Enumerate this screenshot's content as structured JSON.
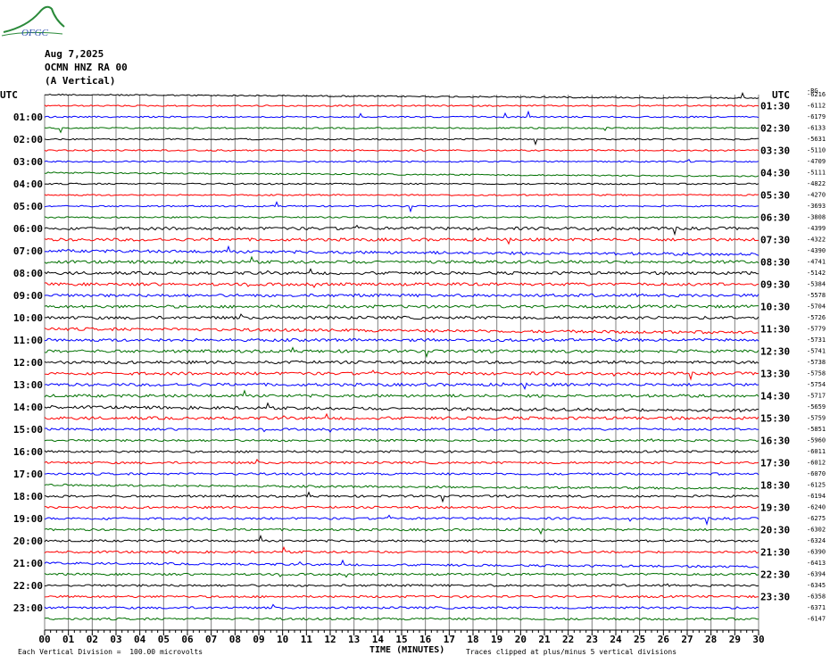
{
  "header": {
    "logo_text": "OFGC",
    "date": "Aug 7,2025",
    "station": "OCMN HNZ RA 00",
    "component": "(A Vertical)"
  },
  "axis": {
    "left_title": "UTC",
    "right_title": "UTC",
    "right_top_label": "-RG",
    "xlabel": "TIME (MINUTES)",
    "x_ticks": [
      "00",
      "01",
      "02",
      "03",
      "04",
      "05",
      "06",
      "07",
      "08",
      "09",
      "10",
      "11",
      "12",
      "13",
      "14",
      "15",
      "16",
      "17",
      "18",
      "19",
      "20",
      "21",
      "22",
      "23",
      "24",
      "25",
      "26",
      "27",
      "28",
      "29",
      "30"
    ]
  },
  "footer": {
    "scale_note": "Each Vertical Division =  100.00 microvolts",
    "clip_note": "Traces clipped at plus/minus 5 vertical divisions"
  },
  "colors": {
    "cycle": [
      "#000000",
      "#ff0000",
      "#0000ff",
      "#007000"
    ],
    "grid": "#808080"
  },
  "chart_data": {
    "type": "line",
    "title": "",
    "xlabel": "TIME (MINUTES)",
    "ylabel": "UTC",
    "xlim": [
      0,
      30
    ],
    "grid": true,
    "left_labels": [
      "01:00",
      "02:00",
      "03:00",
      "04:00",
      "05:00",
      "06:00",
      "07:00",
      "08:00",
      "09:00",
      "10:00",
      "11:00",
      "12:00",
      "13:00",
      "14:00",
      "15:00",
      "16:00",
      "17:00",
      "18:00",
      "19:00",
      "20:00",
      "21:00",
      "22:00",
      "23:00"
    ],
    "right_labels": [
      "01:30",
      "02:30",
      "03:30",
      "04:30",
      "05:30",
      "06:30",
      "07:30",
      "08:30",
      "09:30",
      "10:30",
      "11:30",
      "12:30",
      "13:30",
      "14:30",
      "15:30",
      "16:30",
      "17:30",
      "18:30",
      "19:30",
      "20:30",
      "21:30",
      "22:30",
      "23:30"
    ],
    "offsets": [
      "-6216",
      "-6112",
      "-6179",
      "-6133",
      "-5631",
      "-5110",
      "-4709",
      "-5111",
      "-4822",
      "-4270",
      "-3693",
      "-3808",
      "-4399",
      "-4322",
      "-4390",
      "-4741",
      "-5142",
      "-5384",
      "-5578",
      "-5704",
      "-5726",
      "-5779",
      "-5731",
      "-5741",
      "-5738",
      "-5758",
      "-5754",
      "-5717",
      "-5659",
      "-5759",
      "-5851",
      "-5960",
      "-6011",
      "-6012",
      "-6070",
      "-6125",
      "-6194",
      "-6240",
      "-6275",
      "-6302",
      "-6324",
      "-6390",
      "-6413",
      "-6394",
      "-6345",
      "-6358",
      "-6371",
      "-6147"
    ]
  }
}
